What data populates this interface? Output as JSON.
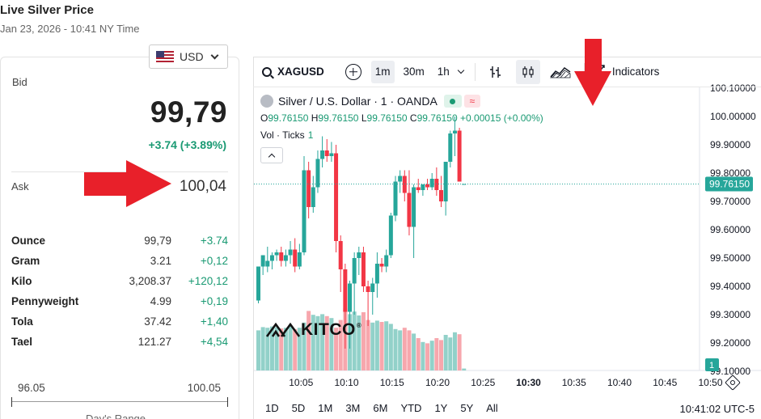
{
  "page": {
    "title": "Live Silver Price",
    "subtitle": "Jan 23, 2026 - 10:41 NY Time"
  },
  "currency": {
    "selected": "USD"
  },
  "quote": {
    "bid_label": "Bid",
    "bid": "99,79",
    "bid_change": "+3.74 (+3.89%)",
    "ask_label": "Ask",
    "ask": "100,04"
  },
  "units": [
    {
      "name": "Ounce",
      "price": "99,79",
      "change": "+3.74"
    },
    {
      "name": "Gram",
      "price": "3.21",
      "change": "+0,12"
    },
    {
      "name": "Kilo",
      "price": "3,208.37",
      "change": "+120,12"
    },
    {
      "name": "Pennyweight",
      "price": "4.99",
      "change": "+0,19"
    },
    {
      "name": "Tola",
      "price": "37.42",
      "change": "+1,40"
    },
    {
      "name": "Tael",
      "price": "121.27",
      "change": "+4,54"
    }
  ],
  "day_range": {
    "low": "96.05",
    "high": "100.05",
    "caption": "Day's Range"
  },
  "toolbar": {
    "symbol": "XAGUSD",
    "intervals": [
      "1m",
      "30m",
      "1h"
    ],
    "active_interval": "1m",
    "indicators_label": "Indicators",
    "icons": [
      "search-icon",
      "add-compare-icon",
      "chevron-down-icon",
      "bar-style-icon",
      "candle-style-icon",
      "area-style-icon",
      "indicators-icon"
    ]
  },
  "legend": {
    "title": "Silver / U.S. Dollar · 1 · OANDA",
    "o_label": "O",
    "o": "99.76150",
    "h_label": "H",
    "h": "99.76150",
    "l_label": "L",
    "l": "99.76150",
    "c_label": "C",
    "c": "99.76150",
    "change": "+0.00015 (+0.00%)",
    "vol_label": "Vol · Ticks",
    "vol_value": "1"
  },
  "watermark": {
    "text": "KITCO",
    "reg": "®"
  },
  "bottom": {
    "periods": [
      "1D",
      "5D",
      "1M",
      "3M",
      "6M",
      "YTD",
      "1Y",
      "5Y",
      "All"
    ],
    "clock": "10:41:02 UTC-5"
  },
  "colors": {
    "up": "#26a69a",
    "down": "#f23645",
    "up_vol": "#92d1c9",
    "down_vol": "#f7a7ad",
    "text": "#131722"
  },
  "chart_data": {
    "type": "candlestick",
    "y_ticks": [
      "100.10000",
      "100.00000",
      "99.90000",
      "99.80000",
      "99.70000",
      "99.60000",
      "99.50000",
      "99.40000",
      "99.30000",
      "99.20000",
      "99.10000"
    ],
    "ylim": [
      99.1,
      100.1
    ],
    "x_ticks": [
      "10:05",
      "10:10",
      "10:15",
      "10:20",
      "10:25",
      "10:30",
      "10:35",
      "10:40",
      "10:45",
      "10:50"
    ],
    "x_tick_minutes": [
      5,
      10,
      15,
      20,
      25,
      30,
      35,
      40,
      45,
      50
    ],
    "bold_tick": "10:30",
    "last_price_label": "99.76150",
    "last_price": 99.7615,
    "volume_scale_label": "1",
    "candles": [
      {
        "t": 0,
        "o": 99.35,
        "h": 99.47,
        "l": 99.34,
        "c": 99.47,
        "v": 0.62
      },
      {
        "t": 1,
        "o": 99.47,
        "h": 99.51,
        "l": 99.44,
        "c": 99.51,
        "v": 0.67
      },
      {
        "t": 2,
        "o": 99.47,
        "h": 99.54,
        "l": 99.45,
        "c": 99.49,
        "v": 0.66
      },
      {
        "t": 3,
        "o": 99.49,
        "h": 99.52,
        "l": 99.46,
        "c": 99.51,
        "v": 0.68
      },
      {
        "t": 4,
        "o": 99.51,
        "h": 99.53,
        "l": 99.49,
        "c": 99.52,
        "v": 0.67
      },
      {
        "t": 5,
        "o": 99.52,
        "h": 99.54,
        "l": 99.47,
        "c": 99.49,
        "v": 0.65
      },
      {
        "t": 6,
        "o": 99.49,
        "h": 99.53,
        "l": 99.47,
        "c": 99.51,
        "v": 0.66
      },
      {
        "t": 7,
        "o": 99.51,
        "h": 99.56,
        "l": 99.48,
        "c": 99.53,
        "v": 0.69
      },
      {
        "t": 8,
        "o": 99.53,
        "h": 99.57,
        "l": 99.45,
        "c": 99.47,
        "v": 0.64
      },
      {
        "t": 9,
        "o": 99.47,
        "h": 99.55,
        "l": 99.46,
        "c": 99.52,
        "v": 0.66
      },
      {
        "t": 10,
        "o": 99.52,
        "h": 99.86,
        "l": 99.51,
        "c": 99.81,
        "v": 0.74
      },
      {
        "t": 11,
        "o": 99.81,
        "h": 99.84,
        "l": 99.64,
        "c": 99.68,
        "v": 0.92
      },
      {
        "t": 12,
        "o": 99.68,
        "h": 99.79,
        "l": 99.66,
        "c": 99.75,
        "v": 0.86
      },
      {
        "t": 13,
        "o": 99.75,
        "h": 99.88,
        "l": 99.73,
        "c": 99.85,
        "v": 0.84
      },
      {
        "t": 14,
        "o": 99.85,
        "h": 99.93,
        "l": 99.82,
        "c": 99.88,
        "v": 0.87
      },
      {
        "t": 15,
        "o": 99.88,
        "h": 99.92,
        "l": 99.84,
        "c": 99.86,
        "v": 0.84
      },
      {
        "t": 16,
        "o": 99.86,
        "h": 99.91,
        "l": 99.84,
        "c": 99.87,
        "v": 0.81
      },
      {
        "t": 17,
        "o": 99.87,
        "h": 99.9,
        "l": 99.52,
        "c": 99.56,
        "v": 0.66
      },
      {
        "t": 18,
        "o": 99.56,
        "h": 99.58,
        "l": 99.38,
        "c": 99.46,
        "v": 0.78
      },
      {
        "t": 19,
        "o": 99.46,
        "h": 99.48,
        "l": 99.18,
        "c": 99.31,
        "v": 0.96
      },
      {
        "t": 20,
        "o": 99.31,
        "h": 99.42,
        "l": 99.18,
        "c": 99.41,
        "v": 0.87
      },
      {
        "t": 21,
        "o": 99.41,
        "h": 99.52,
        "l": 99.3,
        "c": 99.5,
        "v": 0.91
      },
      {
        "t": 22,
        "o": 99.5,
        "h": 99.54,
        "l": 99.44,
        "c": 99.52,
        "v": 0.85
      },
      {
        "t": 23,
        "o": 99.52,
        "h": 99.54,
        "l": 99.38,
        "c": 99.4,
        "v": 0.9
      },
      {
        "t": 24,
        "o": 99.4,
        "h": 99.42,
        "l": 99.26,
        "c": 99.38,
        "v": 0.78
      },
      {
        "t": 25,
        "o": 99.38,
        "h": 99.43,
        "l": 99.3,
        "c": 99.41,
        "v": 0.74
      },
      {
        "t": 26,
        "o": 99.41,
        "h": 99.52,
        "l": 99.36,
        "c": 99.48,
        "v": 0.77
      },
      {
        "t": 27,
        "o": 99.48,
        "h": 99.5,
        "l": 99.45,
        "c": 99.47,
        "v": 0.75
      },
      {
        "t": 28,
        "o": 99.47,
        "h": 99.53,
        "l": 99.45,
        "c": 99.51,
        "v": 0.76
      },
      {
        "t": 29,
        "o": 99.51,
        "h": 99.66,
        "l": 99.5,
        "c": 99.65,
        "v": 0.72
      },
      {
        "t": 30,
        "o": 99.65,
        "h": 99.79,
        "l": 99.63,
        "c": 99.77,
        "v": 0.64
      },
      {
        "t": 31,
        "o": 99.77,
        "h": 99.81,
        "l": 99.73,
        "c": 99.79,
        "v": 0.62
      },
      {
        "t": 32,
        "o": 99.79,
        "h": 99.81,
        "l": 99.7,
        "c": 99.73,
        "v": 0.66
      },
      {
        "t": 33,
        "o": 99.73,
        "h": 99.81,
        "l": 99.58,
        "c": 99.61,
        "v": 0.62
      },
      {
        "t": 34,
        "o": 99.61,
        "h": 99.76,
        "l": 99.5,
        "c": 99.75,
        "v": 0.57
      },
      {
        "t": 35,
        "o": 99.75,
        "h": 99.78,
        "l": 99.73,
        "c": 99.74,
        "v": 0.5
      },
      {
        "t": 36,
        "o": 99.74,
        "h": 99.76,
        "l": 99.72,
        "c": 99.76,
        "v": 0.44
      },
      {
        "t": 37,
        "o": 99.76,
        "h": 99.78,
        "l": 99.74,
        "c": 99.75,
        "v": 0.42
      },
      {
        "t": 38,
        "o": 99.75,
        "h": 99.8,
        "l": 99.74,
        "c": 99.78,
        "v": 0.46
      },
      {
        "t": 39,
        "o": 99.78,
        "h": 99.82,
        "l": 99.72,
        "c": 99.74,
        "v": 0.5
      },
      {
        "t": 40,
        "o": 99.74,
        "h": 99.79,
        "l": 99.68,
        "c": 99.7,
        "v": 0.47
      },
      {
        "t": 41,
        "o": 99.7,
        "h": 99.84,
        "l": 99.65,
        "c": 99.84,
        "v": 0.55
      },
      {
        "t": 42,
        "o": 99.84,
        "h": 99.95,
        "l": 99.82,
        "c": 99.94,
        "v": 0.51
      },
      {
        "t": 43,
        "o": 99.94,
        "h": 100.0,
        "l": 99.86,
        "c": 99.95,
        "v": 0.59
      },
      {
        "t": 44,
        "o": 99.95,
        "h": 99.96,
        "l": 99.77,
        "c": 99.77,
        "v": 0.56
      },
      {
        "t": 45,
        "o": 99.7615,
        "h": 99.7615,
        "l": 99.7615,
        "c": 99.7615,
        "v": 0.03
      }
    ]
  }
}
